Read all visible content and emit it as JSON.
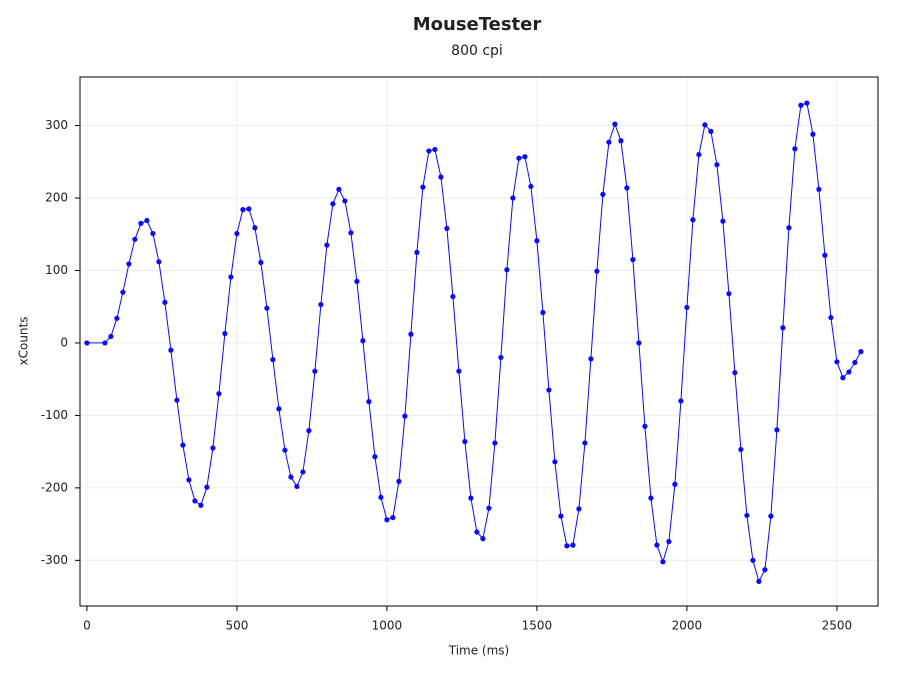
{
  "chart_data": {
    "type": "scatter-line",
    "title": "MouseTester",
    "subtitle": "800 cpi",
    "x_label": "Time (ms)",
    "y_label": "xCounts",
    "x": [
      0,
      60,
      80,
      100,
      120,
      140,
      160,
      180,
      200,
      220,
      240,
      260,
      280,
      300,
      320,
      340,
      360,
      380,
      400,
      420,
      440,
      460,
      480,
      500,
      520,
      540,
      560,
      580,
      600,
      620,
      640,
      660,
      680,
      700,
      720,
      740,
      760,
      780,
      800,
      820,
      840,
      860,
      880,
      900,
      920,
      940,
      960,
      980,
      1000,
      1020,
      1040,
      1060,
      1080,
      1100,
      1120,
      1140,
      1160,
      1180,
      1200,
      1220,
      1240,
      1260,
      1280,
      1300,
      1320,
      1340,
      1360,
      1380,
      1400,
      1420,
      1440,
      1460,
      1480,
      1500,
      1520,
      1540,
      1560,
      1580,
      1600,
      1620,
      1640,
      1660,
      1680,
      1700,
      1720,
      1740,
      1760,
      1780,
      1800,
      1820,
      1840,
      1860,
      1880,
      1900,
      1920,
      1940,
      1960,
      1980,
      2000,
      2020,
      2040,
      2060,
      2080,
      2100,
      2120,
      2140,
      2160,
      2180,
      2200,
      2220,
      2240,
      2260,
      2280,
      2300,
      2320,
      2340,
      2360,
      2380,
      2400,
      2420,
      2440,
      2460,
      2480,
      2500,
      2520,
      2540,
      2560,
      2580
    ],
    "series": [
      {
        "color": "#0a0aff",
        "values": [
          0,
          0,
          9,
          34,
          70,
          109,
          143,
          165,
          169,
          151,
          112,
          56,
          -10,
          -79,
          -141,
          -189,
          -218,
          -224,
          -199,
          -145,
          -70,
          13,
          91,
          151,
          184,
          185,
          159,
          111,
          48,
          -23,
          -91,
          -148,
          -185,
          -198,
          -178,
          -121,
          -39,
          53,
          135,
          192,
          212,
          196,
          152,
          85,
          3,
          -81,
          -157,
          -213,
          -244,
          -241,
          -191,
          -101,
          12,
          125,
          215,
          265,
          267,
          229,
          158,
          64,
          -39,
          -136,
          -214,
          -261,
          -270,
          -228,
          -138,
          -20,
          101,
          200,
          255,
          257,
          216,
          141,
          42,
          -65,
          -164,
          -239,
          -280,
          -279,
          -229,
          -138,
          -22,
          99,
          205,
          277,
          302,
          279,
          214,
          115,
          0,
          -115,
          -214,
          -279,
          -302,
          -274,
          -195,
          -80,
          49,
          170,
          260,
          301,
          292,
          246,
          168,
          68,
          -41,
          -147,
          -238,
          -300,
          -329,
          -313,
          -239,
          -120,
          21,
          159,
          268,
          328,
          331,
          288,
          212,
          121,
          35,
          -26,
          -48,
          -40,
          -27,
          -12
        ]
      }
    ],
    "xlim": [
      -23,
      2637
    ],
    "ylim": [
      -363,
      367
    ],
    "xticks": [
      0,
      500,
      1000,
      1500,
      2000,
      2500
    ],
    "yticks": [
      -300,
      -200,
      -100,
      0,
      100,
      200,
      300
    ],
    "grid": true
  }
}
